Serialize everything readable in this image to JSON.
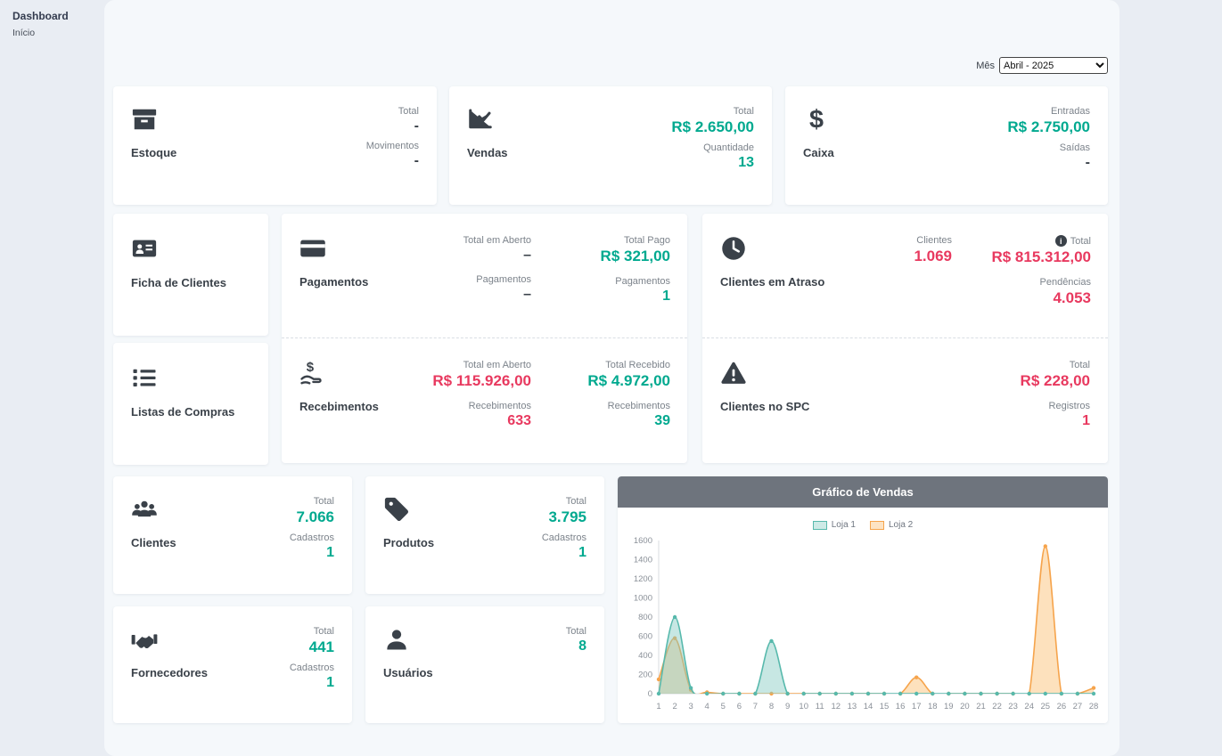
{
  "page": {
    "title": "Dashboard",
    "breadcrumb": "Início",
    "month_label": "Mês",
    "month_value": "Abril - 2025"
  },
  "colors": {
    "accent_teal": "#00a98f",
    "accent_red": "#e8395f",
    "icon_dark": "#3a4149",
    "chart_header_bg": "#6e747d",
    "page_bg": "#e9edf3",
    "panel_bg": "#f5f8fb"
  },
  "tiles": {
    "estoque": {
      "title": "Estoque",
      "stats": [
        {
          "label": "Total",
          "value": "-"
        },
        {
          "label": "Movimentos",
          "value": "-"
        }
      ]
    },
    "vendas": {
      "title": "Vendas",
      "stats": [
        {
          "label": "Total",
          "value": "R$ 2.650,00"
        },
        {
          "label": "Quantidade",
          "value": "13"
        }
      ]
    },
    "caixa": {
      "title": "Caixa",
      "stats": [
        {
          "label": "Entradas",
          "value": "R$ 2.750,00"
        },
        {
          "label": "Saídas",
          "value": "-"
        }
      ]
    },
    "ficha_de_clientes": {
      "title": "Ficha de Clientes"
    },
    "listas_de_compras": {
      "title": "Listas de Compras"
    },
    "pagamentos": {
      "title": "Pagamentos",
      "col1": [
        {
          "label": "Total em Aberto",
          "value": "–"
        },
        {
          "label": "Pagamentos",
          "value": "–"
        }
      ],
      "col2": [
        {
          "label": "Total Pago",
          "value": "R$ 321,00"
        },
        {
          "label": "Pagamentos",
          "value": "1"
        }
      ]
    },
    "recebimentos": {
      "title": "Recebimentos",
      "col1": [
        {
          "label": "Total em Aberto",
          "value": "R$ 115.926,00"
        },
        {
          "label": "Recebimentos",
          "value": "633"
        }
      ],
      "col2": [
        {
          "label": "Total Recebido",
          "value": "R$ 4.972,00"
        },
        {
          "label": "Recebimentos",
          "value": "39"
        }
      ]
    },
    "clientes_em_atraso": {
      "title": "Clientes em Atraso",
      "col1": [
        {
          "label": "Clientes",
          "value": "1.069"
        }
      ],
      "col2": [
        {
          "label": "Total",
          "value": "R$ 815.312,00"
        },
        {
          "label": "Pendências",
          "value": "4.053"
        }
      ]
    },
    "clientes_no_spc": {
      "title": "Clientes no SPC",
      "col2": [
        {
          "label": "Total",
          "value": "R$ 228,00"
        },
        {
          "label": "Registros",
          "value": "1"
        }
      ]
    },
    "clientes": {
      "title": "Clientes",
      "stats": [
        {
          "label": "Total",
          "value": "7.066"
        },
        {
          "label": "Cadastros",
          "value": "1"
        }
      ]
    },
    "produtos": {
      "title": "Produtos",
      "stats": [
        {
          "label": "Total",
          "value": "3.795"
        },
        {
          "label": "Cadastros",
          "value": "1"
        }
      ]
    },
    "fornecedores": {
      "title": "Fornecedores",
      "stats": [
        {
          "label": "Total",
          "value": "441"
        },
        {
          "label": "Cadastros",
          "value": "1"
        }
      ]
    },
    "usuarios": {
      "title": "Usuários",
      "stats": [
        {
          "label": "Total",
          "value": "8"
        }
      ]
    }
  },
  "chart_data": {
    "type": "area",
    "title": "Gráfico de Vendas",
    "x": [
      1,
      2,
      3,
      4,
      5,
      6,
      7,
      8,
      9,
      10,
      11,
      12,
      13,
      14,
      15,
      16,
      17,
      18,
      19,
      20,
      21,
      22,
      23,
      24,
      25,
      26,
      27,
      28
    ],
    "xlabel": "",
    "ylabel": "",
    "ylim": [
      0,
      1600
    ],
    "ytick_step": 200,
    "legend_position": "top",
    "grid": false,
    "series": [
      {
        "name": "Loja 1",
        "stroke": "#57b9ac",
        "fill": "rgba(130,202,192,0.45)",
        "swatch": "#cdeae6",
        "values": [
          0,
          800,
          60,
          0,
          0,
          0,
          0,
          550,
          0,
          0,
          0,
          0,
          0,
          0,
          0,
          0,
          0,
          0,
          0,
          0,
          0,
          0,
          0,
          0,
          0,
          0,
          0,
          0
        ]
      },
      {
        "name": "Loja 2",
        "stroke": "#f6a44c",
        "fill": "rgba(251,195,123,0.5)",
        "swatch": "#fde3c3",
        "values": [
          150,
          580,
          40,
          15,
          0,
          0,
          0,
          0,
          0,
          0,
          0,
          0,
          0,
          0,
          0,
          0,
          170,
          0,
          0,
          0,
          0,
          0,
          0,
          0,
          1540,
          0,
          0,
          60
        ]
      }
    ]
  }
}
